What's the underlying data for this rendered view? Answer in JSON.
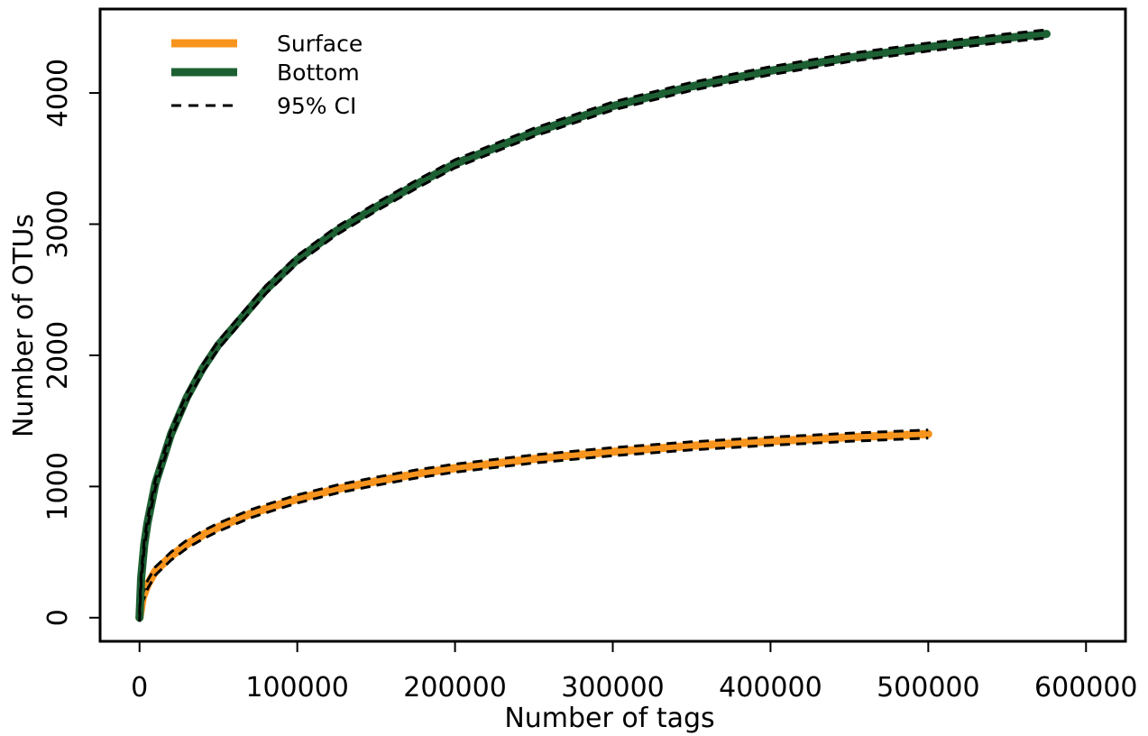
{
  "chart_data": {
    "type": "line",
    "title": "",
    "xlabel": "Number of tags",
    "ylabel": "Number of OTUs",
    "xlim": [
      -25000,
      625000
    ],
    "ylim": [
      -180,
      4640
    ],
    "xticks": [
      0,
      100000,
      200000,
      300000,
      400000,
      500000,
      600000
    ],
    "yticks": [
      0,
      1000,
      2000,
      3000,
      4000
    ],
    "xtick_labels": [
      "0",
      "100000",
      "200000",
      "300000",
      "400000",
      "500000",
      "600000"
    ],
    "ytick_labels": [
      "0",
      "1000",
      "2000",
      "3000",
      "4000"
    ],
    "grid": false,
    "legend_position": "top-left",
    "legend": [
      {
        "label": "Surface",
        "style": "solid",
        "color": "#f7941d"
      },
      {
        "label": "Bottom",
        "style": "solid",
        "color": "#1d6033"
      },
      {
        "label": "95% CI",
        "style": "dashed",
        "color": "#000000"
      }
    ],
    "series": [
      {
        "name": "Surface",
        "color": "#f7941d",
        "style": "solid",
        "x": [
          0,
          2000,
          5000,
          10000,
          20000,
          30000,
          40000,
          50000,
          60000,
          70000,
          80000,
          100000,
          125000,
          150000,
          175000,
          200000,
          250000,
          300000,
          350000,
          400000,
          450000,
          500000
        ],
        "y": [
          0,
          150,
          250,
          355,
          470,
          560,
          630,
          690,
          740,
          790,
          830,
          905,
          980,
          1040,
          1095,
          1140,
          1210,
          1265,
          1310,
          1345,
          1375,
          1400
        ]
      },
      {
        "name": "Bottom",
        "color": "#1d6033",
        "style": "solid",
        "x": [
          0,
          1000,
          3000,
          5000,
          10000,
          20000,
          30000,
          40000,
          50000,
          60000,
          80000,
          100000,
          125000,
          150000,
          175000,
          200000,
          250000,
          300000,
          350000,
          400000,
          450000,
          500000,
          550000,
          575000
        ],
        "y": [
          0,
          300,
          560,
          720,
          1020,
          1400,
          1680,
          1900,
          2080,
          2220,
          2500,
          2730,
          2950,
          3130,
          3300,
          3460,
          3700,
          3900,
          4050,
          4170,
          4270,
          4350,
          4420,
          4450
        ]
      }
    ]
  }
}
